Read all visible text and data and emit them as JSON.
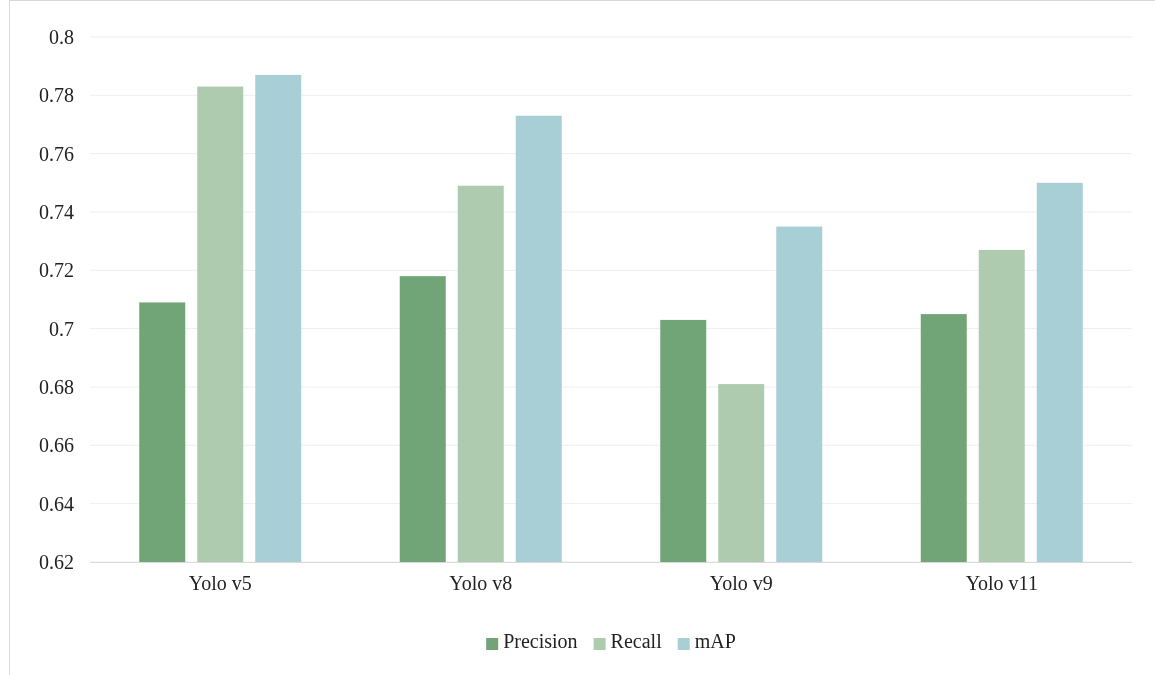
{
  "chart_data": {
    "type": "bar",
    "categories": [
      "Yolo v5",
      "Yolo v8",
      "Yolo v9",
      "Yolo v11"
    ],
    "series": [
      {
        "name": "Precision",
        "color": "#71a477",
        "values": [
          0.709,
          0.718,
          0.703,
          0.705
        ]
      },
      {
        "name": "Recall",
        "color": "#afcbaf",
        "values": [
          0.783,
          0.749,
          0.681,
          0.727
        ]
      },
      {
        "name": "mAP",
        "color": "#a8ced6",
        "values": [
          0.787,
          0.773,
          0.735,
          0.75
        ]
      }
    ],
    "ylim": [
      0.62,
      0.8
    ],
    "yticks": [
      0.62,
      0.64,
      0.66,
      0.68,
      0.7,
      0.72,
      0.74,
      0.76,
      0.78,
      0.8
    ],
    "grid": "y",
    "legend": "bottom"
  }
}
